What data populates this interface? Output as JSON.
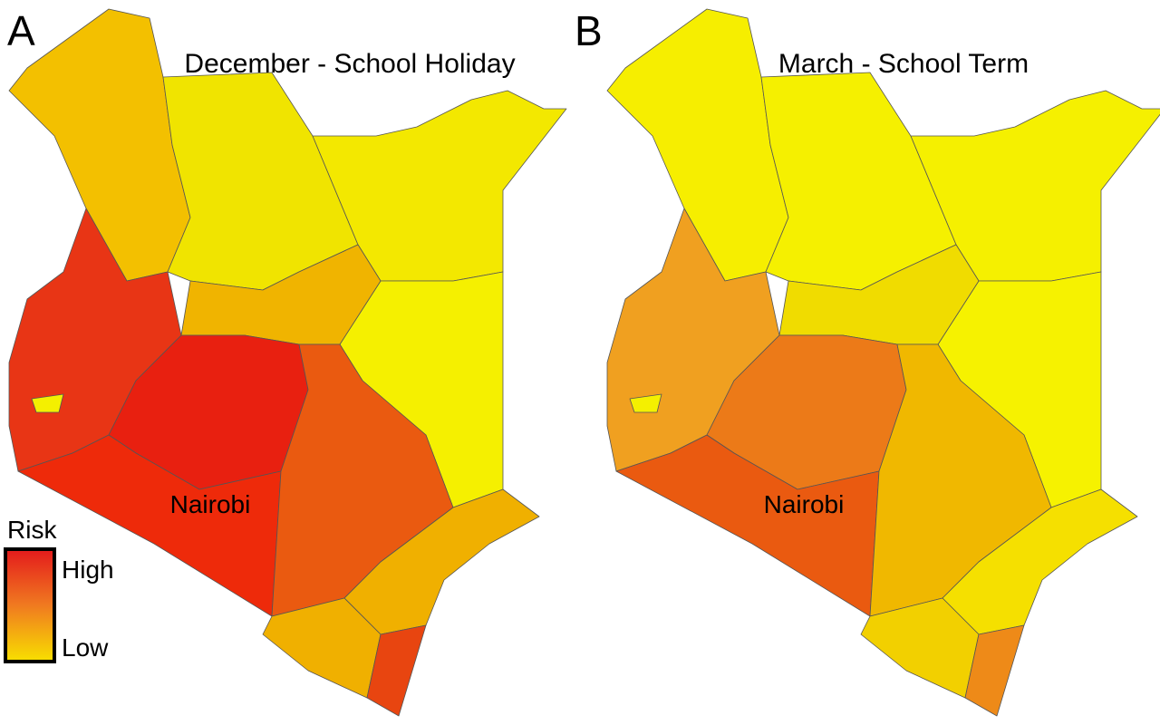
{
  "panels": [
    {
      "letter": "A",
      "title": "December - School Holiday",
      "city": "Nairobi"
    },
    {
      "letter": "B",
      "title": "March - School Term",
      "city": "Nairobi"
    }
  ],
  "legend": {
    "title": "Risk",
    "high": "High",
    "low": "Low"
  }
}
